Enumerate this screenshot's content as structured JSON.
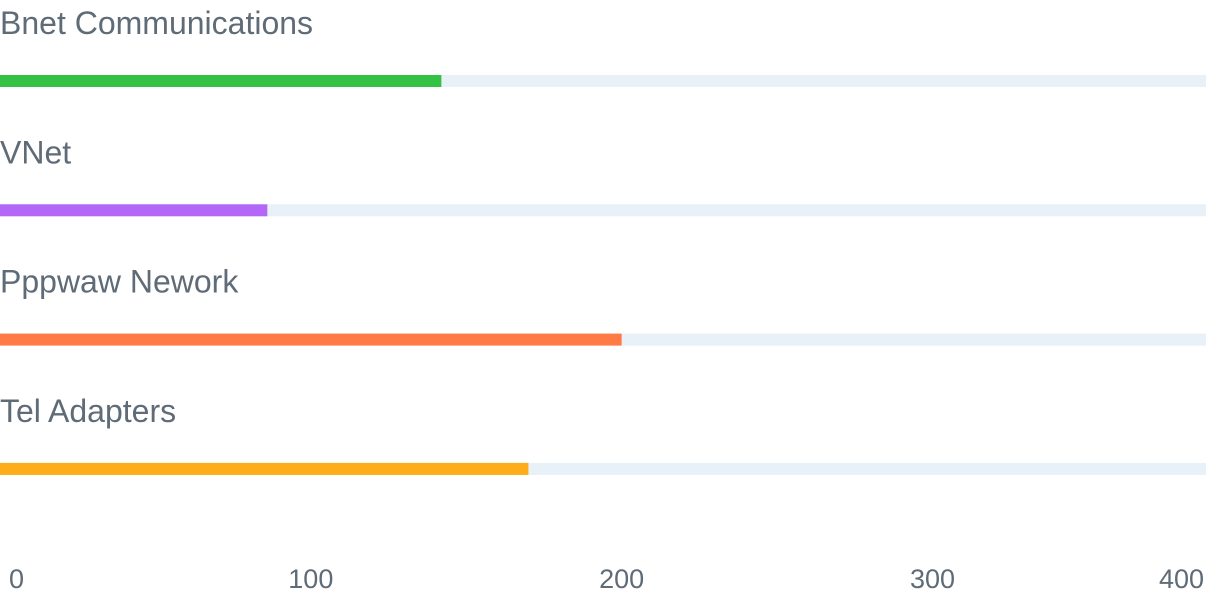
{
  "chart_data": {
    "type": "bar",
    "orientation": "horizontal",
    "categories": [
      "Bnet Communications",
      "VNet",
      "Pppwaw Nework",
      "Tel Adapters"
    ],
    "values": [
      142,
      86,
      200,
      170
    ],
    "xlim": [
      0,
      388
    ],
    "ticks": [
      0,
      100,
      200,
      300,
      400
    ],
    "tick_labels": [
      "0",
      "100",
      "200",
      "300",
      "400"
    ],
    "colors": [
      "#35C244",
      "#B466F7",
      "#FF7A45",
      "#FFAC1A"
    ],
    "track_color": "#E8F0F8",
    "label_color": "#5F6B76",
    "tick_color": "#5F6B76",
    "grid": false,
    "legend": "none"
  }
}
